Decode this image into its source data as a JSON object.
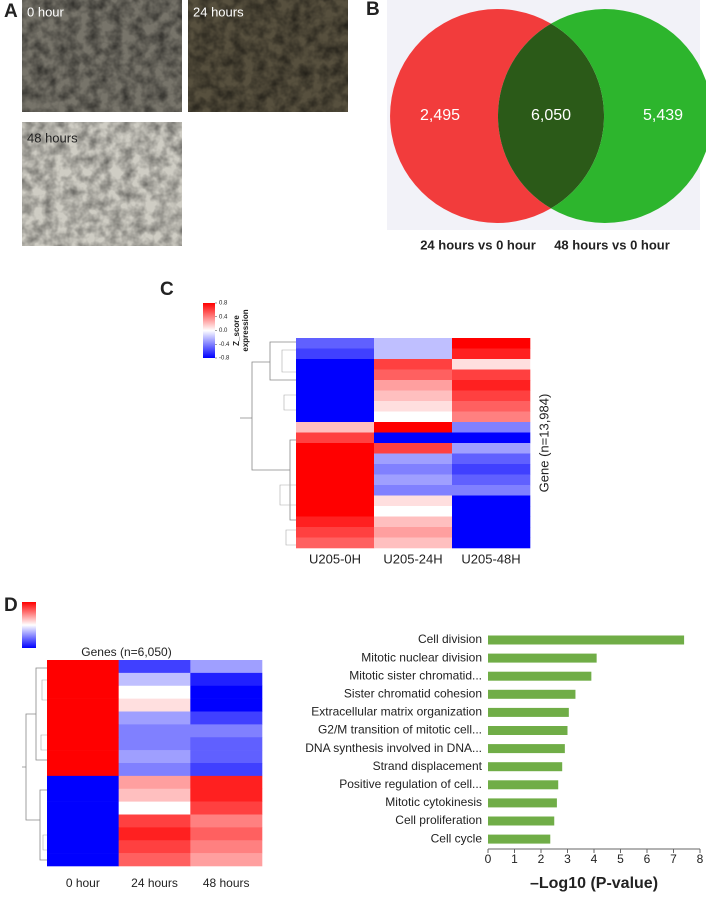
{
  "images": {
    "panel_label": "A",
    "labels": [
      "0 hour",
      "24 hours",
      "48 hours"
    ]
  },
  "chart_data": [
    {
      "type": "venn",
      "panel_label": "B",
      "sets": [
        {
          "name": "24 hours vs 0 hour",
          "color": "#f23c3c"
        },
        {
          "name": "48 hours vs 0 hour",
          "color": "#2db52d"
        }
      ],
      "overlap_color": "#2b5a18",
      "values": [
        2495,
        6050,
        5439
      ],
      "value_labels": [
        "2,495",
        "6,050",
        "5,439"
      ]
    },
    {
      "type": "heatmap",
      "panel_label": "C",
      "categories": [
        "U205-0H",
        "U205-24H",
        "U205-48H"
      ],
      "ylabel": "Gene (n=13,984)",
      "colorbar_title": [
        "Z_score",
        "expression"
      ],
      "clim": [
        -0.8,
        0.8
      ],
      "cticks": [
        0.8,
        0.4,
        {
          "value": 0,
          "label": "0.0"
        },
        -0.4,
        -0.8
      ],
      "values": [
        [
          -0.5,
          -0.2,
          0.8
        ],
        [
          -0.6,
          -0.2,
          0.7
        ],
        [
          -0.8,
          0.6,
          0.1
        ],
        [
          -0.8,
          0.5,
          0.6
        ],
        [
          -0.8,
          0.3,
          0.7
        ],
        [
          -0.8,
          0.2,
          0.6
        ],
        [
          -0.8,
          0.1,
          0.5
        ],
        [
          -0.8,
          0.0,
          0.4
        ],
        [
          0.2,
          0.8,
          -0.4
        ],
        [
          0.6,
          -0.8,
          -0.8
        ],
        [
          0.8,
          0.6,
          -0.3
        ],
        [
          0.8,
          -0.3,
          -0.5
        ],
        [
          0.8,
          -0.4,
          -0.6
        ],
        [
          0.8,
          -0.3,
          -0.5
        ],
        [
          0.8,
          -0.4,
          -0.4
        ],
        [
          0.8,
          0.1,
          -0.8
        ],
        [
          0.8,
          0.0,
          -0.8
        ],
        [
          0.7,
          0.2,
          -0.8
        ],
        [
          0.6,
          0.3,
          -0.8
        ],
        [
          0.5,
          0.2,
          -0.8
        ]
      ]
    },
    {
      "type": "heatmap",
      "panel_label": "D",
      "title": "Genes (n=6,050)",
      "categories": [
        "0 hour",
        "24 hours",
        "48 hours"
      ],
      "clim": [
        -0.8,
        0.8
      ],
      "values": [
        [
          0.8,
          -0.6,
          -0.3
        ],
        [
          0.8,
          -0.2,
          -0.7
        ],
        [
          0.8,
          0.0,
          -0.8
        ],
        [
          0.8,
          0.1,
          -0.8
        ],
        [
          0.8,
          -0.3,
          -0.6
        ],
        [
          0.8,
          -0.4,
          -0.4
        ],
        [
          0.8,
          -0.4,
          -0.5
        ],
        [
          0.8,
          -0.3,
          -0.5
        ],
        [
          0.8,
          -0.4,
          -0.6
        ],
        [
          -0.8,
          0.3,
          0.7
        ],
        [
          -0.8,
          0.2,
          0.7
        ],
        [
          -0.8,
          0.0,
          0.6
        ],
        [
          -0.8,
          0.6,
          0.4
        ],
        [
          -0.8,
          0.7,
          0.5
        ],
        [
          -0.8,
          0.6,
          0.4
        ],
        [
          -0.8,
          0.5,
          0.3
        ]
      ]
    },
    {
      "type": "hbar",
      "categories": [
        "Cell division",
        "Mitotic nuclear division",
        "Mitotic sister chromatid...",
        "Sister chromatid cohesion",
        "Extracellular matrix organization",
        "G2/M transition of mitotic cell...",
        "DNA synthesis involved in DNA...",
        "Strand displacement",
        "Positive regulation of cell...",
        "Mitotic cytokinesis",
        "Cell proliferation",
        "Cell cycle"
      ],
      "values": [
        7.4,
        4.1,
        3.9,
        3.3,
        3.05,
        3.0,
        2.9,
        2.8,
        2.65,
        2.6,
        2.5,
        2.35
      ],
      "color": "#70ad47",
      "xlabel": "–Log10 (P-value)",
      "xlim": [
        0,
        8
      ],
      "xticks": [
        0,
        1,
        2,
        3,
        4,
        5,
        6,
        7,
        8
      ]
    }
  ]
}
